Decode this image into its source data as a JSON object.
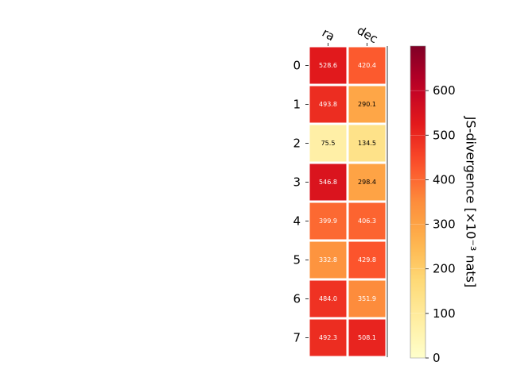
{
  "chart_data": {
    "type": "heatmap",
    "columns": [
      "ra",
      "dec"
    ],
    "rows": [
      "0",
      "1",
      "2",
      "3",
      "4",
      "5",
      "6",
      "7"
    ],
    "values": [
      [
        528.6,
        420.4
      ],
      [
        493.8,
        290.1
      ],
      [
        75.5,
        134.5
      ],
      [
        546.8,
        298.4
      ],
      [
        399.9,
        406.3
      ],
      [
        332.8,
        429.8
      ],
      [
        484.0,
        351.9
      ],
      [
        492.3,
        508.1
      ]
    ],
    "value_labels": [
      [
        "528.6",
        "420.4"
      ],
      [
        "493.8",
        "290.1"
      ],
      [
        "75.5",
        "134.5"
      ],
      [
        "546.8",
        "298.4"
      ],
      [
        "399.9",
        "406.3"
      ],
      [
        "332.8",
        "429.8"
      ],
      [
        "484.0",
        "351.9"
      ],
      [
        "492.3",
        "508.1"
      ]
    ],
    "colormap": "YlOrRd",
    "vmin": 0,
    "vmax": 700,
    "colorbar": {
      "label": "JS-divergence [×10⁻³ nats]",
      "ticks": [
        0,
        100,
        200,
        300,
        400,
        500,
        600
      ],
      "tick_labels": [
        "0",
        "100",
        "200",
        "300",
        "400",
        "500",
        "600"
      ]
    }
  }
}
